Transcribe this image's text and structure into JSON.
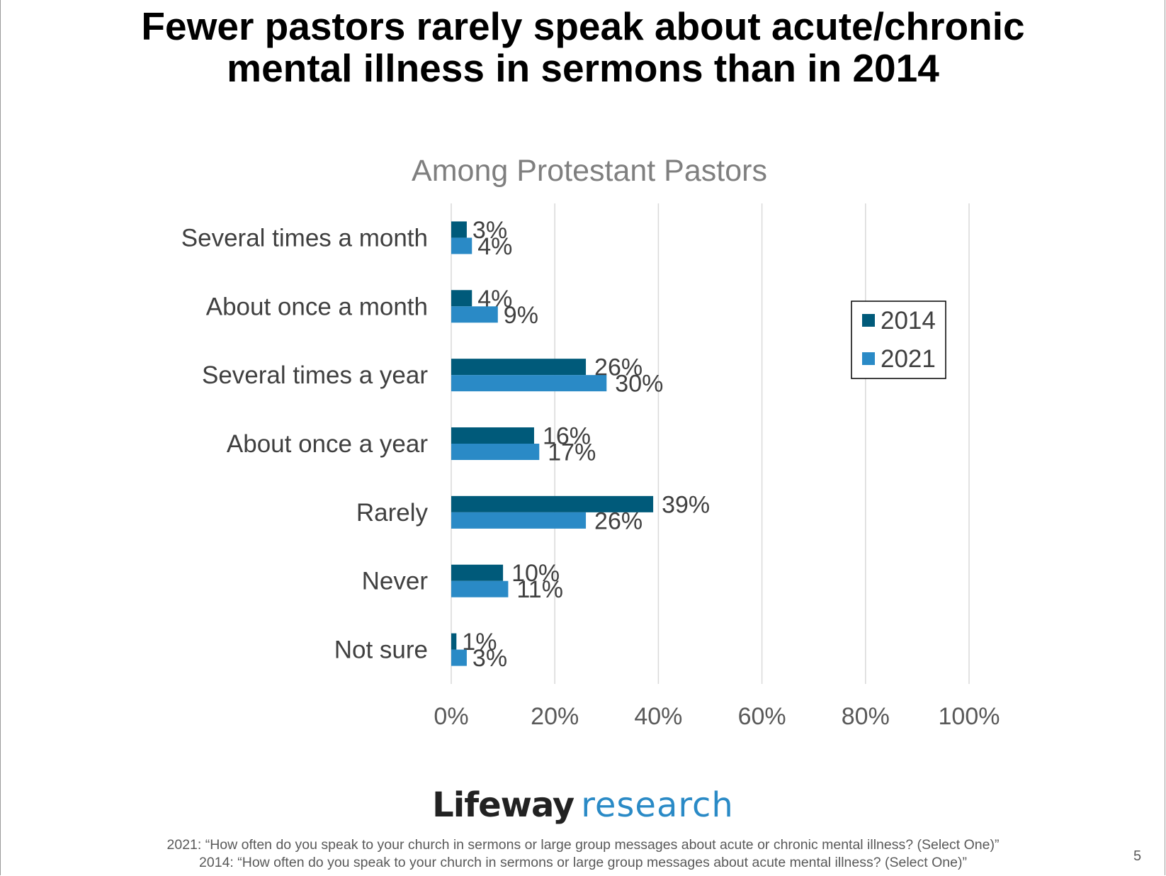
{
  "slide": {
    "title_line1": "Fewer pastors rarely speak about acute/chronic",
    "title_line2": "mental illness in sermons than in 2014",
    "logo_word1": "Lifeway",
    "logo_word2": "research",
    "footnote_2021": "2021: “How often do you speak to your church in sermons or large group messages about acute or chronic mental illness? (Select One)”",
    "footnote_2014": "2014: “How often do you speak to your church in sermons or large group messages about acute mental illness? (Select One)”",
    "page_number": "5"
  },
  "chart_data": {
    "type": "bar",
    "orientation": "horizontal",
    "title": "Among Protestant Pastors",
    "categories": [
      "Several times a month",
      "About once a month",
      "Several times a year",
      "About once a year",
      "Rarely",
      "Never",
      "Not sure"
    ],
    "series": [
      {
        "name": "2014",
        "values": [
          3,
          4,
          26,
          16,
          39,
          10,
          1
        ],
        "labels": [
          "3%",
          "4%",
          "26%",
          "16%",
          "39%",
          "10%",
          "1%"
        ],
        "color": "#005a7a"
      },
      {
        "name": "2021",
        "values": [
          4,
          9,
          30,
          17,
          26,
          11,
          3
        ],
        "labels": [
          "4%",
          "9%",
          "30%",
          "17%",
          "26%",
          "11%",
          "3%"
        ],
        "color": "#2a8ac6"
      }
    ],
    "xlim": [
      0,
      100
    ],
    "xticks": [
      0,
      20,
      40,
      60,
      80,
      100
    ],
    "xtick_labels": [
      "0%",
      "20%",
      "40%",
      "60%",
      "80%",
      "100%"
    ],
    "grid": true,
    "legend_position": "right"
  }
}
